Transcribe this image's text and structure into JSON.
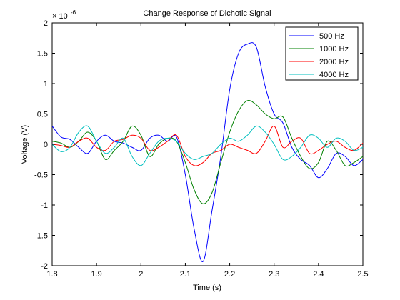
{
  "chart_data": {
    "type": "line",
    "title": "Change Response of Dichotic Signal",
    "xlabel": "Time (s)",
    "ylabel": "Voltage (V)",
    "y_multiplier_label": "× 10",
    "y_multiplier_exponent": "-6",
    "xlim": [
      1.8,
      2.5
    ],
    "ylim": [
      -2,
      2
    ],
    "xticks": [
      "1.8",
      "1.9",
      "2",
      "2.1",
      "2.2",
      "2.3",
      "2.4",
      "2.5"
    ],
    "yticks": [
      "-2",
      "-1.5",
      "-1",
      "-0.5",
      "0",
      "0.5",
      "1",
      "1.5",
      "2"
    ],
    "grid": false,
    "legend_position": "top-right",
    "x": [
      1.8,
      1.82,
      1.84,
      1.86,
      1.88,
      1.9,
      1.92,
      1.94,
      1.96,
      1.98,
      2.0,
      2.02,
      2.04,
      2.06,
      2.08,
      2.1,
      2.12,
      2.14,
      2.16,
      2.18,
      2.2,
      2.22,
      2.24,
      2.26,
      2.28,
      2.3,
      2.32,
      2.34,
      2.36,
      2.38,
      2.4,
      2.42,
      2.44,
      2.46,
      2.48,
      2.5
    ],
    "series": [
      {
        "name": "500 Hz",
        "color": "#0000ff",
        "values": [
          0.3,
          0.12,
          0.08,
          -0.05,
          -0.15,
          0.05,
          0.15,
          0.05,
          0.02,
          -0.05,
          -0.1,
          0.1,
          0.15,
          0.05,
          0.12,
          -0.5,
          -1.4,
          -1.93,
          -1.1,
          -0.2,
          0.9,
          1.5,
          1.65,
          1.6,
          0.95,
          0.5,
          0.35,
          -0.05,
          -0.25,
          -0.35,
          -0.55,
          -0.4,
          -0.15,
          -0.2,
          -0.35,
          -0.25
        ]
      },
      {
        "name": "1000 Hz",
        "color": "#008000",
        "values": [
          0.05,
          0.02,
          -0.05,
          0.05,
          0.2,
          0.05,
          -0.25,
          -0.1,
          0.05,
          0.3,
          0.15,
          -0.2,
          0.0,
          0.1,
          0.05,
          -0.3,
          -0.75,
          -0.98,
          -0.8,
          -0.3,
          0.2,
          0.55,
          0.72,
          0.65,
          0.5,
          0.42,
          0.45,
          0.1,
          -0.2,
          -0.4,
          -0.3,
          0.05,
          -0.1,
          -0.35,
          -0.3,
          -0.2
        ]
      },
      {
        "name": "2000 Hz",
        "color": "#ff0000",
        "values": [
          0.0,
          -0.02,
          -0.05,
          0.05,
          0.1,
          -0.05,
          -0.1,
          0.05,
          0.08,
          0.15,
          0.1,
          -0.1,
          -0.05,
          0.05,
          0.15,
          -0.2,
          -0.35,
          -0.3,
          -0.15,
          -0.1,
          0.0,
          -0.05,
          -0.1,
          -0.15,
          0.05,
          0.3,
          -0.05,
          0.05,
          0.1,
          -0.15,
          -0.1,
          0.0,
          0.05,
          -0.05,
          -0.1,
          0.02
        ]
      },
      {
        "name": "4000 Hz",
        "color": "#00bfbf",
        "values": [
          0.0,
          -0.12,
          -0.05,
          0.2,
          0.3,
          0.05,
          -0.15,
          -0.05,
          0.1,
          -0.2,
          -0.35,
          -0.15,
          0.05,
          0.1,
          0.05,
          -0.15,
          -0.25,
          -0.2,
          -0.15,
          0.0,
          0.1,
          0.05,
          0.15,
          0.3,
          0.2,
          0.0,
          -0.25,
          -0.2,
          -0.05,
          0.15,
          0.1,
          -0.05,
          0.1,
          0.05,
          -0.1,
          -0.05
        ]
      }
    ]
  }
}
